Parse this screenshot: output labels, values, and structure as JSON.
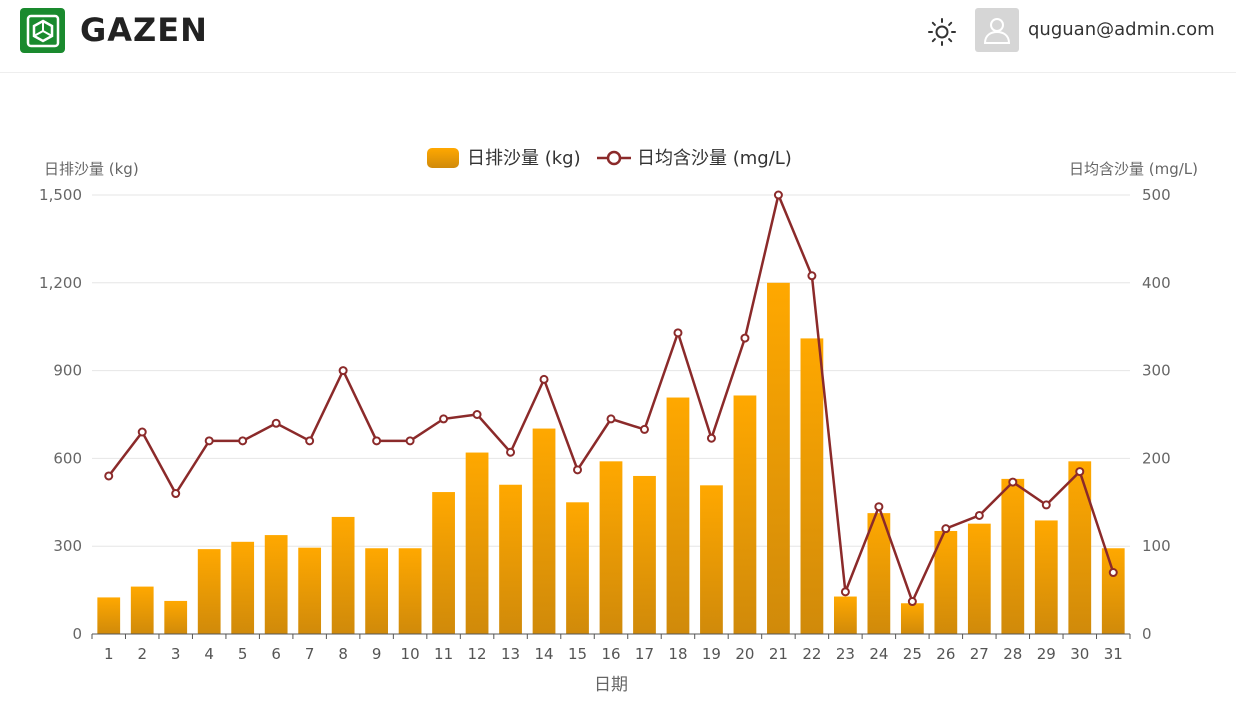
{
  "header": {
    "brand": "GAZEN",
    "user_email": "quguan@admin.com",
    "theme_icon": "sun-icon",
    "avatar_icon": "user-avatar-icon",
    "logo_icon": "gazen-logo-icon",
    "brand_color": "#1a8a2e"
  },
  "chart_data": {
    "type": "bar",
    "combo": "bar+line",
    "xlabel": "日期",
    "y_left_label": "日排沙量 (kg)",
    "y_right_label": "日均含沙量 (mg/L)",
    "y_left_lim": [
      0,
      1500
    ],
    "y_right_lim": [
      0,
      500
    ],
    "y_left_ticks": [
      "0",
      "300",
      "600",
      "900",
      "1,200",
      "1,500"
    ],
    "y_right_ticks": [
      "0",
      "100",
      "200",
      "300",
      "400",
      "500"
    ],
    "legend_position": "top-center",
    "grid": true,
    "categories": [
      "1",
      "2",
      "3",
      "4",
      "5",
      "6",
      "7",
      "8",
      "9",
      "10",
      "11",
      "12",
      "13",
      "14",
      "15",
      "16",
      "17",
      "18",
      "19",
      "20",
      "21",
      "22",
      "23",
      "24",
      "25",
      "26",
      "27",
      "28",
      "29",
      "30",
      "31"
    ],
    "series": [
      {
        "name": "日排沙量 (kg)",
        "type": "bar",
        "axis": "left",
        "color_top": "#ffa800",
        "color_bottom": "#d08a0a",
        "values": [
          125,
          162,
          113,
          290,
          315,
          338,
          295,
          400,
          293,
          293,
          485,
          620,
          510,
          702,
          450,
          590,
          540,
          808,
          508,
          815,
          1200,
          1010,
          128,
          413,
          105,
          352,
          377,
          530,
          388,
          590,
          293
        ]
      },
      {
        "name": "日均含沙量 (mg/L)",
        "type": "line",
        "axis": "right",
        "color": "#8b2a2a",
        "values": [
          180,
          230,
          160,
          220,
          220,
          240,
          220,
          300,
          220,
          220,
          245,
          250,
          207,
          290,
          187,
          245,
          233,
          343,
          223,
          337,
          500,
          408,
          48,
          145,
          37,
          120,
          135,
          173,
          147,
          185,
          70
        ]
      }
    ]
  }
}
